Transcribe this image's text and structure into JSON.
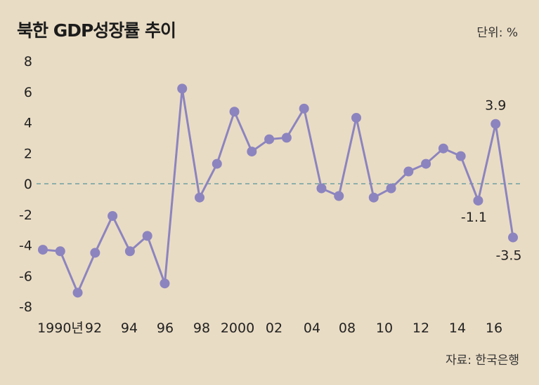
{
  "title": "북한 GDP성장률 추이",
  "unit_label": "단위: %",
  "source_label": "자료: 한국은행",
  "colors": {
    "background": "#e9dcc4",
    "line": "#8c84bf",
    "zero_line": "#6fa0a2"
  },
  "chart_data": {
    "type": "line",
    "title": "북한 GDP성장률 추이",
    "x": [
      1990,
      1991,
      1992,
      1993,
      1994,
      1995,
      1996,
      1997,
      1998,
      1999,
      2000,
      2001,
      2002,
      2003,
      2004,
      2005,
      2006,
      2007,
      2008,
      2009,
      2010,
      2011,
      2012,
      2013,
      2014,
      2015,
      2016,
      2017
    ],
    "series": [
      {
        "values": [
          -4.3,
          -4.4,
          -7.1,
          -4.5,
          -2.1,
          -4.4,
          -3.4,
          -6.5,
          6.2,
          -0.9,
          1.3,
          4.7,
          2.1,
          2.9,
          3.0,
          4.9,
          -0.3,
          -0.8,
          4.3,
          -0.9,
          -0.3,
          0.8,
          1.3,
          2.3,
          1.8,
          -1.1,
          3.9,
          -3.5
        ]
      }
    ],
    "xlabel": "",
    "ylabel": "",
    "ylim": [
      -8,
      8
    ],
    "yticks": [
      "8",
      "6",
      "4",
      "2",
      "0",
      "-2",
      "-4",
      "-6",
      "-8"
    ],
    "xticks": [
      "1990년",
      "92",
      "94",
      "96",
      "98",
      "2000",
      "02",
      "04",
      "08",
      "10",
      "12",
      "14",
      "16"
    ],
    "annotations": [
      "3.9",
      "-1.1",
      "-3.5"
    ],
    "zero_line": "dashed",
    "grid": false,
    "legend": "none"
  }
}
